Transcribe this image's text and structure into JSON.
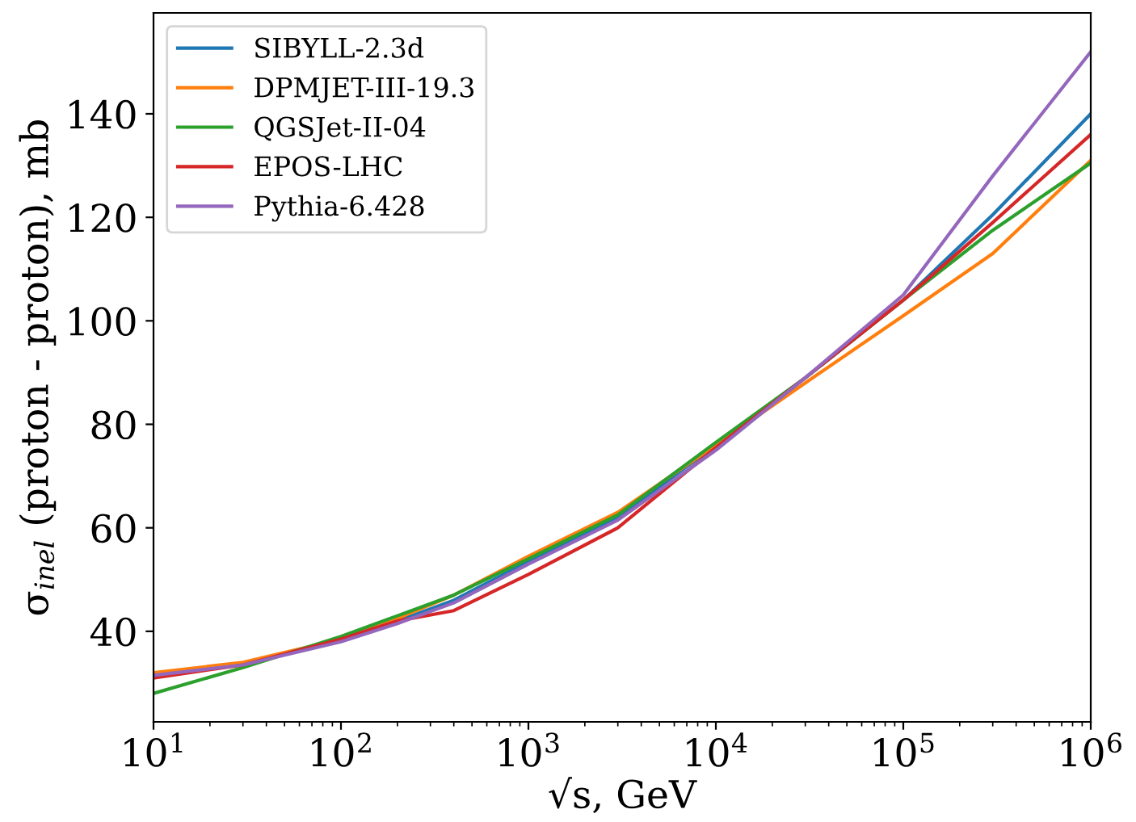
{
  "chart_data": {
    "type": "line",
    "xlabel": "√s, GeV",
    "ylabel": "σ$_{inel}$ (proton - proton), mb",
    "x": [
      10,
      30,
      100,
      200,
      400,
      1000,
      3000,
      10000,
      30000,
      100000,
      300000,
      1000000
    ],
    "series": [
      {
        "name": "SIBYLL-2.3d",
        "color": "#1f77b4",
        "values": [
          null,
          null,
          38.5,
          42,
          46,
          53.5,
          62,
          76,
          89,
          104,
          120.5,
          140
        ]
      },
      {
        "name": "DPMJET-III-19.3",
        "color": "#ff7f0e",
        "values": [
          32,
          34,
          38.5,
          42.5,
          47,
          54.5,
          63,
          76,
          88,
          101,
          113,
          131
        ]
      },
      {
        "name": "QGSJet-II-04",
        "color": "#2ca02c",
        "values": [
          28,
          33,
          39,
          43,
          47,
          54,
          62.5,
          76.5,
          89,
          104,
          117.5,
          130.5
        ]
      },
      {
        "name": "EPOS-LHC",
        "color": "#d62728",
        "values": [
          31,
          33.5,
          38.5,
          42,
          44,
          51,
          60,
          75.5,
          89,
          104,
          119,
          136
        ]
      },
      {
        "name": "Pythia-6.428",
        "color": "#9467bd",
        "values": [
          31.5,
          33.5,
          38,
          41.5,
          45.5,
          53,
          61.5,
          75,
          89,
          105,
          128,
          152
        ]
      }
    ],
    "log": "x",
    "xlim": [
      10,
      1000000
    ],
    "xticks": [
      {
        "value": 10,
        "label": "10$^{1}$"
      },
      {
        "value": 100,
        "label": "10$^{2}$"
      },
      {
        "value": 1000,
        "label": "10$^{3}$"
      },
      {
        "value": 10000,
        "label": "10$^{4}$"
      },
      {
        "value": 100000,
        "label": "10$^{5}$"
      },
      {
        "value": 1000000,
        "label": "10$^{6}$"
      }
    ],
    "ylim": [
      22.5,
      159.5
    ],
    "yticks": [
      40,
      60,
      80,
      100,
      120,
      140
    ],
    "legend": "top left",
    "grid": false,
    "marker": "none",
    "line_style": "solid"
  }
}
